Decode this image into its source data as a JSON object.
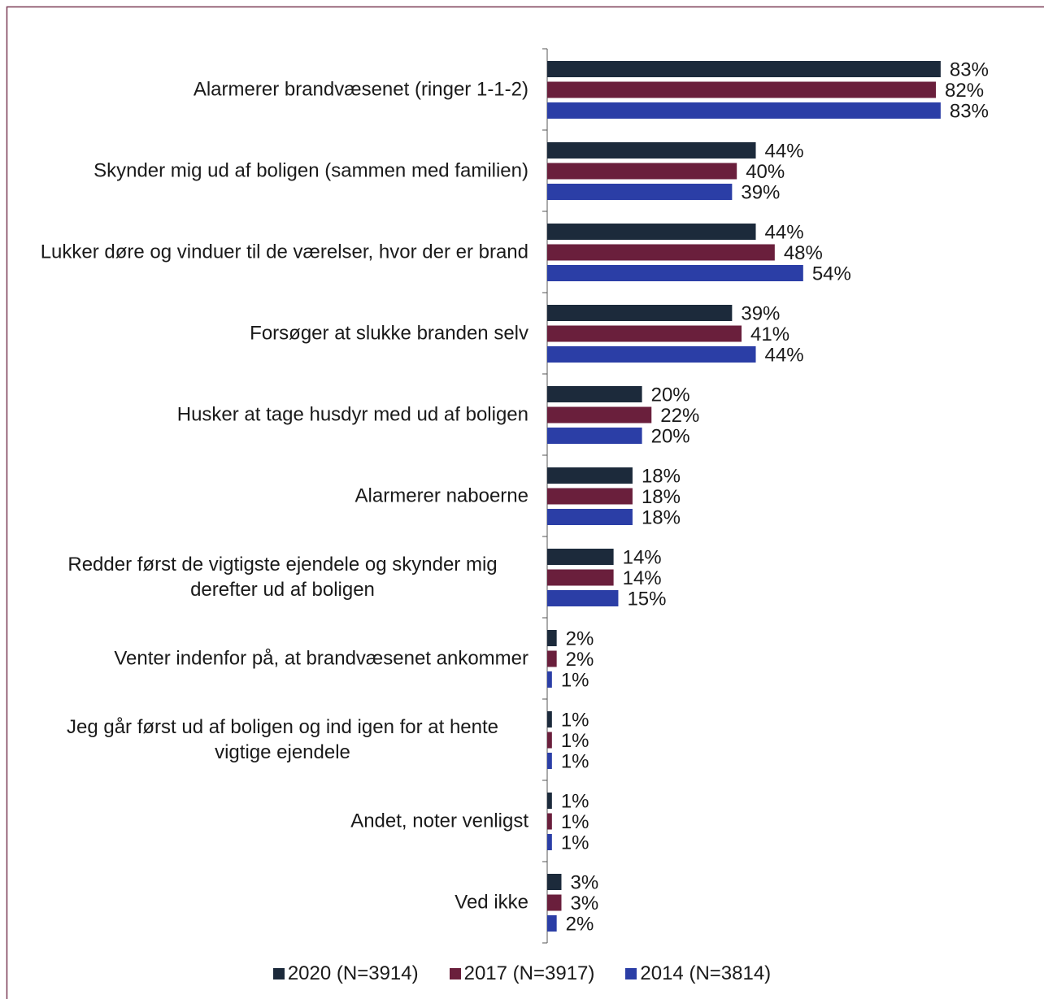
{
  "chart_data": {
    "type": "hbar",
    "categories": [
      "Alarmerer brandvæsenet (ringer 1-1-2)",
      "Skynder mig ud af boligen (sammen med familien)",
      "Lukker døre og vinduer til de værelser, hvor der er brand",
      "Forsøger at slukke branden selv",
      "Husker at tage husdyr med ud af boligen",
      "Alarmerer naboerne",
      "Redder først de vigtigste ejendele og skynder mig derefter ud af boligen",
      "Venter indenfor på, at brandvæsenet ankommer",
      "Jeg går først ud af boligen og ind igen for at hente vigtige ejendele",
      "Andet, noter venligst",
      "Ved ikke"
    ],
    "series": [
      {
        "name": "2020 (N=3914)",
        "color": "#1c2a3b",
        "values": [
          83,
          44,
          44,
          39,
          20,
          18,
          14,
          2,
          1,
          1,
          3
        ],
        "value_labels": [
          "83%",
          "44%",
          "44%",
          "39%",
          "20%",
          "18%",
          "14%",
          "2%",
          "1%",
          "1%",
          "3%"
        ]
      },
      {
        "name": "2017 (N=3917)",
        "color": "#6a1f3c",
        "values": [
          82,
          40,
          48,
          41,
          22,
          18,
          14,
          2,
          1,
          1,
          3
        ],
        "value_labels": [
          "82%",
          "40%",
          "48%",
          "41%",
          "22%",
          "18%",
          "14%",
          "2%",
          "1%",
          "1%",
          "3%"
        ]
      },
      {
        "name": "2014 (N=3814)",
        "color": "#2b3ea6",
        "values": [
          83,
          39,
          54,
          44,
          20,
          18,
          15,
          1,
          1,
          1,
          2
        ],
        "value_labels": [
          "83%",
          "39%",
          "54%",
          "44%",
          "20%",
          "18%",
          "15%",
          "1%",
          "1%",
          "1%",
          "2%"
        ]
      }
    ],
    "xlim": [
      0,
      100
    ],
    "legend": "bottom"
  }
}
